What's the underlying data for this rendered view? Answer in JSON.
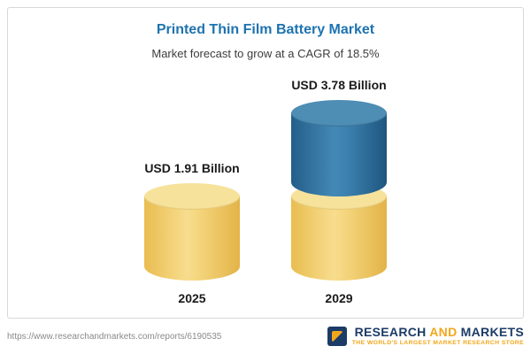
{
  "header": {
    "title": "Printed Thin Film Battery Market",
    "subtitle": "Market forecast to grow at a CAGR of 18.5%"
  },
  "chart_data": {
    "type": "bar",
    "categories": [
      "2025",
      "2029"
    ],
    "values": [
      1.91,
      3.78
    ],
    "value_labels": [
      "USD 1.91 Billion",
      "USD 3.78 Billion"
    ],
    "title": "Printed Thin Film Battery Market",
    "subtitle": "Market forecast to grow at a CAGR of 18.5%",
    "unit": "USD Billion",
    "cagr": "18.5%",
    "legend_position": "none",
    "grid": false,
    "colors": {
      "base_segment": "#f3d379",
      "growth_segment": "#3b7fae"
    }
  },
  "footer": {
    "url": "https://www.researchandmarkets.com/reports/6190535",
    "logo": {
      "word_research": "RESEARCH ",
      "word_and": "AND",
      "word_markets": " MARKETS",
      "tagline": "THE WORLD'S LARGEST MARKET RESEARCH STORE"
    }
  }
}
